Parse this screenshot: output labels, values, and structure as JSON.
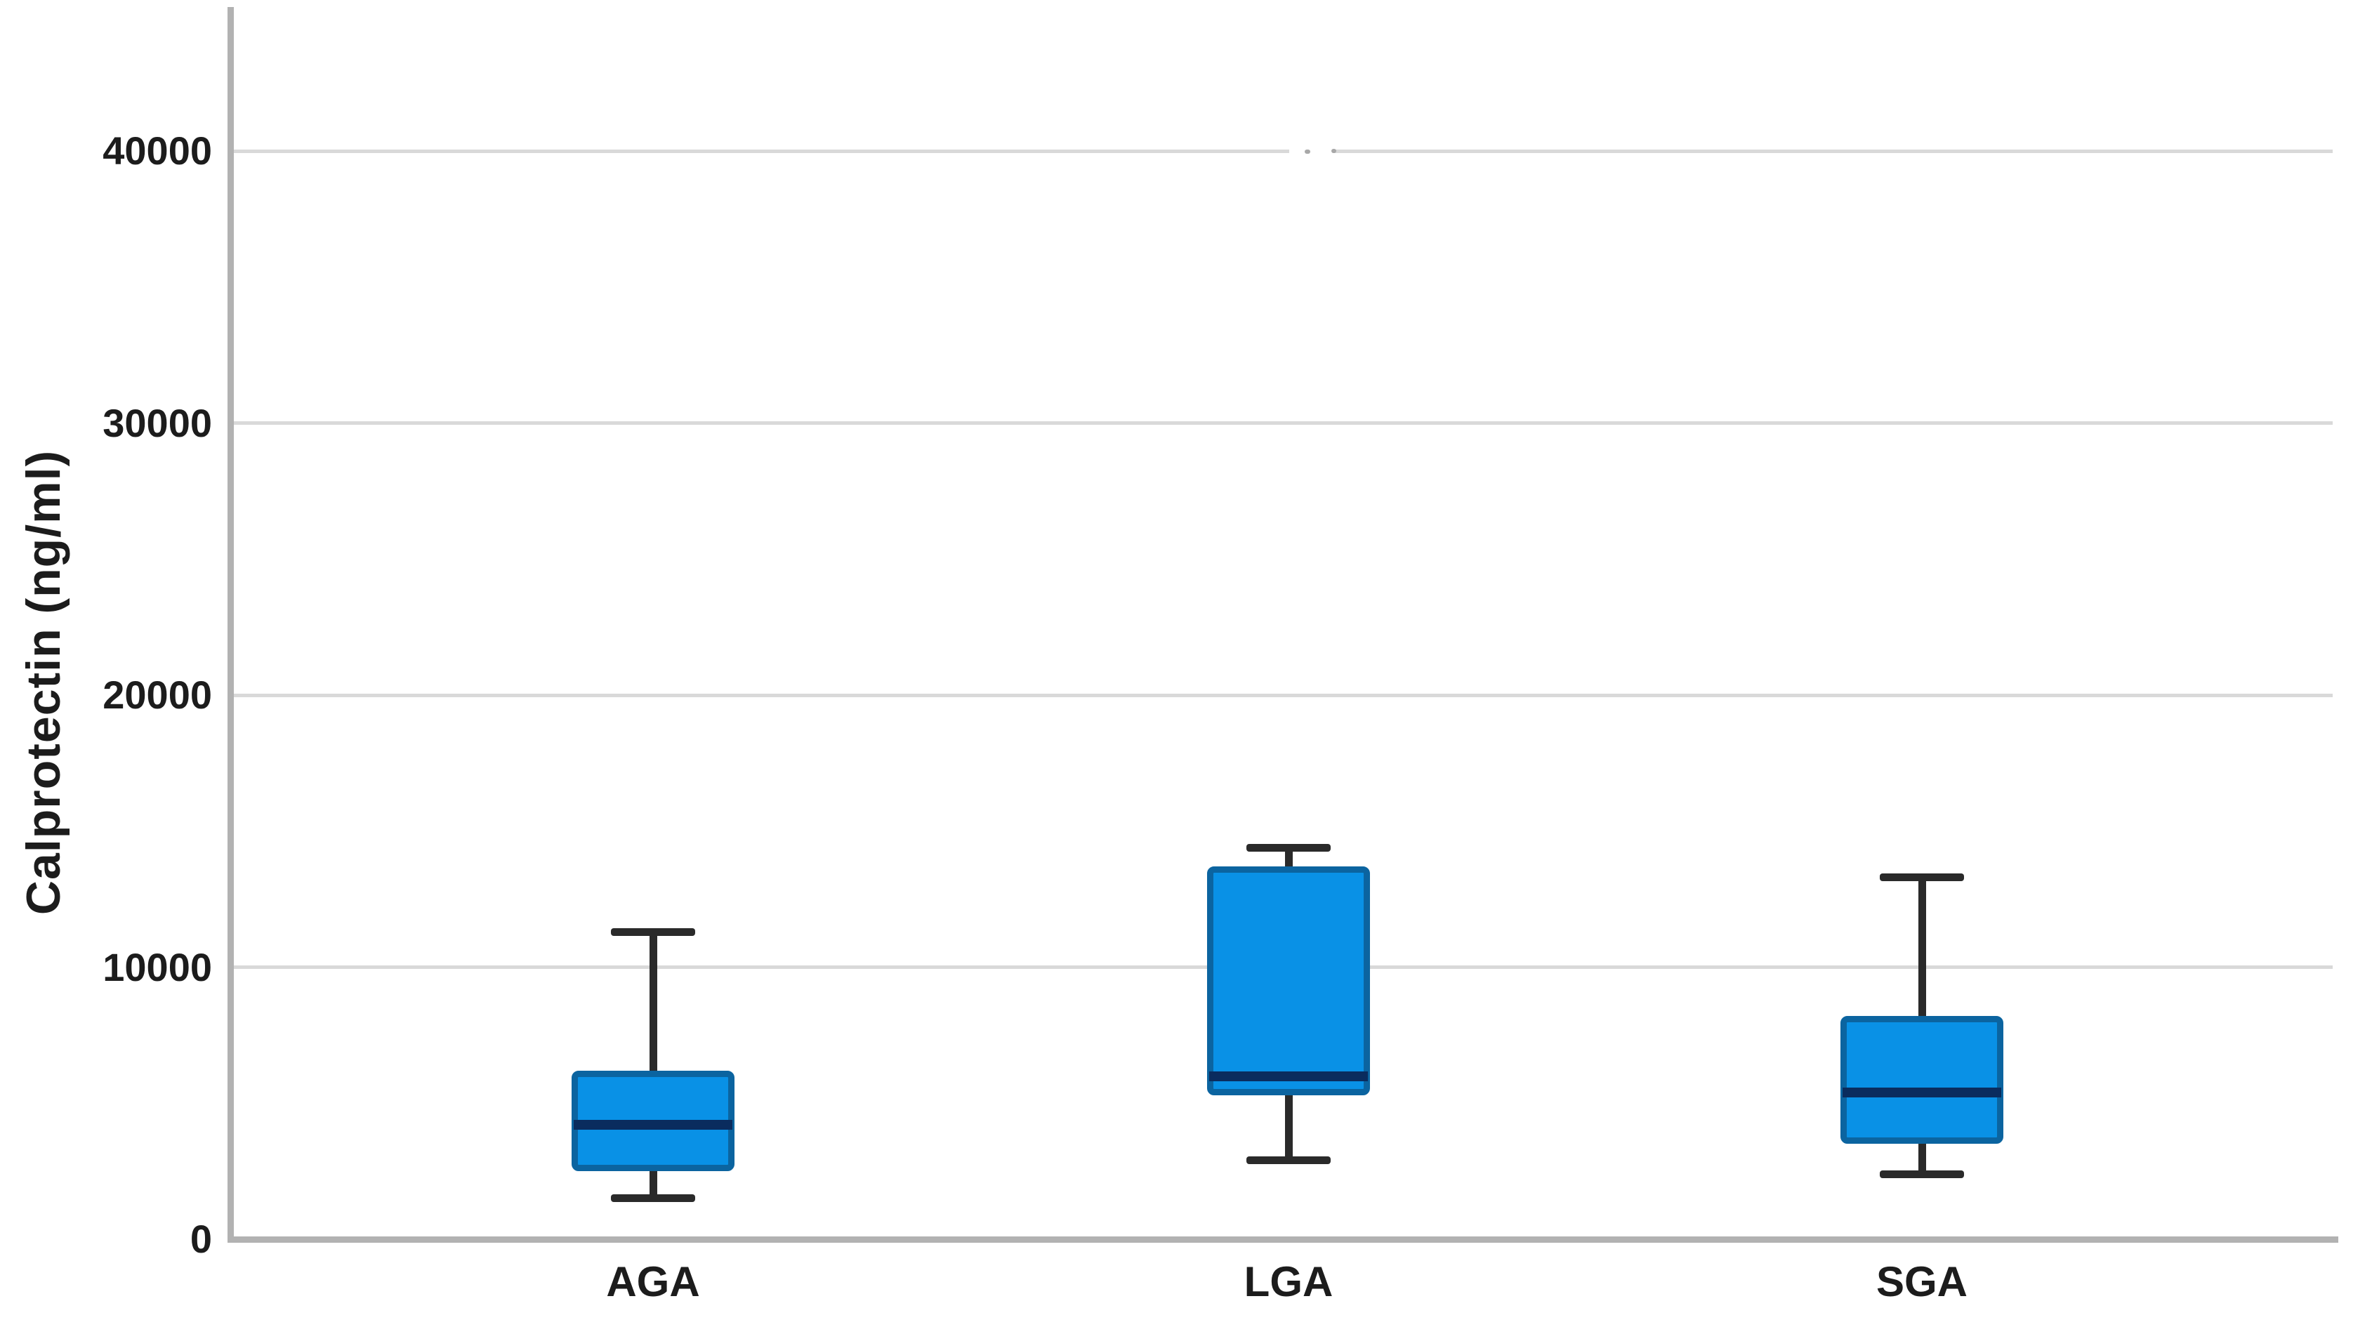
{
  "chart_data": {
    "type": "boxplot",
    "title": "",
    "ylabel": "Calprotectin (ng/ml)",
    "xlabel": "",
    "categories": [
      "AGA",
      "LGA",
      "SGA"
    ],
    "y_ticks": [
      0,
      10000,
      20000,
      30000,
      40000
    ],
    "y_tick_labels": [
      "0",
      "10000",
      "20000",
      "30000",
      "40000"
    ],
    "ylim": [
      0,
      45000
    ],
    "grid": "horizontal-light-gray",
    "legend": "none",
    "series": [
      {
        "name": "AGA",
        "min": 1500,
        "q1": 2500,
        "median": 4200,
        "q3": 6200,
        "max": 11300
      },
      {
        "name": "LGA",
        "min": 2900,
        "q1": 5300,
        "median": 6000,
        "q3": 13700,
        "max": 14400
      },
      {
        "name": "SGA",
        "min": 2400,
        "q1": 3500,
        "median": 5400,
        "q3": 8200,
        "max": 13300
      }
    ]
  },
  "colors": {
    "background": "#ffffff",
    "box_fill": "#0991e6",
    "box_border": "#0b64a0",
    "median": "#0a2c5e",
    "whisker": "#2a2a2a",
    "gridline": "#d9d9d9",
    "axis": "#b2b2b2",
    "text": "#1c1c1c",
    "artifact_speck": "#a8a8a8"
  }
}
